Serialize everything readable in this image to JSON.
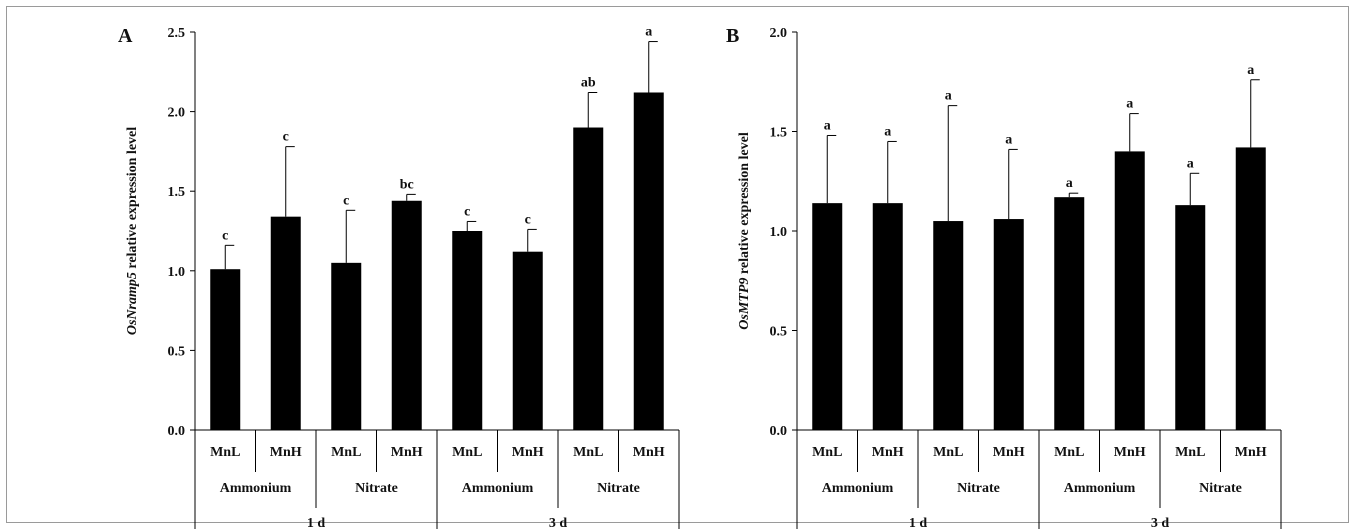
{
  "chart_data": [
    {
      "type": "bar",
      "panel_label": "A",
      "ylabel_italic": "OsNramp5",
      "ylabel_rest": " relative expression level",
      "ylim": [
        0,
        2.5
      ],
      "yticks": [
        "0.0",
        "0.5",
        "1.0",
        "1.5",
        "2.0",
        "2.5"
      ],
      "ytick_values": [
        0,
        0.5,
        1.0,
        1.5,
        2.0,
        2.5
      ],
      "categories": [
        "MnL",
        "MnH",
        "MnL",
        "MnH",
        "MnL",
        "MnH",
        "MnL",
        "MnH"
      ],
      "groups": [
        "Ammonium",
        "Nitrate",
        "Ammonium",
        "Nitrate"
      ],
      "times": [
        "1 d",
        "3 d"
      ],
      "values": [
        1.01,
        1.34,
        1.05,
        1.44,
        1.25,
        1.12,
        1.9,
        2.12
      ],
      "errors": [
        0.15,
        0.44,
        0.33,
        0.04,
        0.06,
        0.14,
        0.22,
        0.32
      ],
      "significance": [
        "c",
        "c",
        "c",
        "bc",
        "c",
        "c",
        "ab",
        "a"
      ],
      "color": "#000000"
    },
    {
      "type": "bar",
      "panel_label": "B",
      "ylabel_italic": "OsMTP9",
      "ylabel_rest": " relative expression level",
      "ylim": [
        0,
        2.0
      ],
      "yticks": [
        "0.0",
        "0.5",
        "1.0",
        "1.5",
        "2.0"
      ],
      "ytick_values": [
        0,
        0.5,
        1.0,
        1.5,
        2.0
      ],
      "categories": [
        "MnL",
        "MnH",
        "MnL",
        "MnH",
        "MnL",
        "MnH",
        "MnL",
        "MnH"
      ],
      "groups": [
        "Ammonium",
        "Nitrate",
        "Ammonium",
        "Nitrate"
      ],
      "times": [
        "1 d",
        "3 d"
      ],
      "values": [
        1.14,
        1.14,
        1.05,
        1.06,
        1.17,
        1.4,
        1.13,
        1.42
      ],
      "errors": [
        0.34,
        0.31,
        0.58,
        0.35,
        0.02,
        0.19,
        0.16,
        0.34
      ],
      "significance": [
        "a",
        "a",
        "a",
        "a",
        "a",
        "a",
        "a",
        "a"
      ],
      "color": "#000000"
    }
  ]
}
